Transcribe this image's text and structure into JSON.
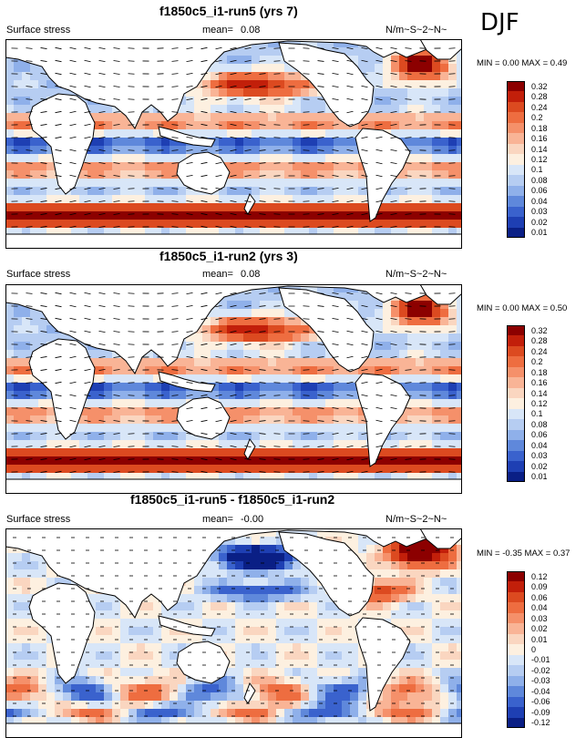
{
  "season": "DJF",
  "chart_data": [
    {
      "type": "heatmap",
      "title": "f1850c5_i1-run5 (yrs 7)",
      "variable": "Surface stress",
      "mean_label": "mean=",
      "mean_value": "0.08",
      "units": "N/m~S~2~N~",
      "minmax": "MIN =  0.00 MAX =  0.49",
      "min": 0.0,
      "max": 0.49,
      "colorbar_levels": [
        "0.32",
        "0.28",
        "0.24",
        "0.2",
        "0.18",
        "0.16",
        "0.14",
        "0.12",
        "0.1",
        "0.08",
        "0.06",
        "0.04",
        "0.03",
        "0.02",
        "0.01"
      ],
      "colorbar_colors": [
        "#8c0000",
        "#c21f0a",
        "#dc4a20",
        "#ee6d40",
        "#f5906a",
        "#f9b496",
        "#fad6c0",
        "#fdf0e0",
        "#d8e6f8",
        "#b6cdf2",
        "#8fb0ea",
        "#5f88db",
        "#3a62cd",
        "#1e3fb3",
        "#0a1f85"
      ],
      "style": "full"
    },
    {
      "type": "heatmap",
      "title": "f1850c5_i1-run2 (yrs 3)",
      "variable": "Surface stress",
      "mean_label": "mean=",
      "mean_value": "0.08",
      "units": "N/m~S~2~N~",
      "minmax": "MIN =  0.00 MAX =  0.50",
      "min": 0.0,
      "max": 0.5,
      "colorbar_levels": [
        "0.32",
        "0.28",
        "0.24",
        "0.2",
        "0.18",
        "0.16",
        "0.14",
        "0.12",
        "0.1",
        "0.08",
        "0.06",
        "0.04",
        "0.03",
        "0.02",
        "0.01"
      ],
      "colorbar_colors": [
        "#8c0000",
        "#c21f0a",
        "#dc4a20",
        "#ee6d40",
        "#f5906a",
        "#f9b496",
        "#fad6c0",
        "#fdf0e0",
        "#d8e6f8",
        "#b6cdf2",
        "#8fb0ea",
        "#5f88db",
        "#3a62cd",
        "#1e3fb3",
        "#0a1f85"
      ],
      "style": "full"
    },
    {
      "type": "heatmap",
      "title": "f1850c5_i1-run5 - f1850c5_i1-run2",
      "variable": "Surface stress",
      "mean_label": "mean=",
      "mean_value": "-0.00",
      "units": "N/m~S~2~N~",
      "minmax": "MIN = -0.35 MAX =  0.37",
      "min": -0.35,
      "max": 0.37,
      "colorbar_levels": [
        "0.12",
        "0.09",
        "0.06",
        "0.04",
        "0.03",
        "0.02",
        "0.01",
        "0",
        "-0.01",
        "-0.02",
        "-0.03",
        "-0.04",
        "-0.06",
        "-0.09",
        "-0.12"
      ],
      "colorbar_colors": [
        "#8c0000",
        "#c21f0a",
        "#dc4a20",
        "#ee6d40",
        "#f5906a",
        "#f9b496",
        "#fad6c0",
        "#fdf0e0",
        "#d8e6f8",
        "#b6cdf2",
        "#8fb0ea",
        "#5f88db",
        "#3a62cd",
        "#1e3fb3",
        "#0a1f85"
      ],
      "style": "diff"
    }
  ]
}
